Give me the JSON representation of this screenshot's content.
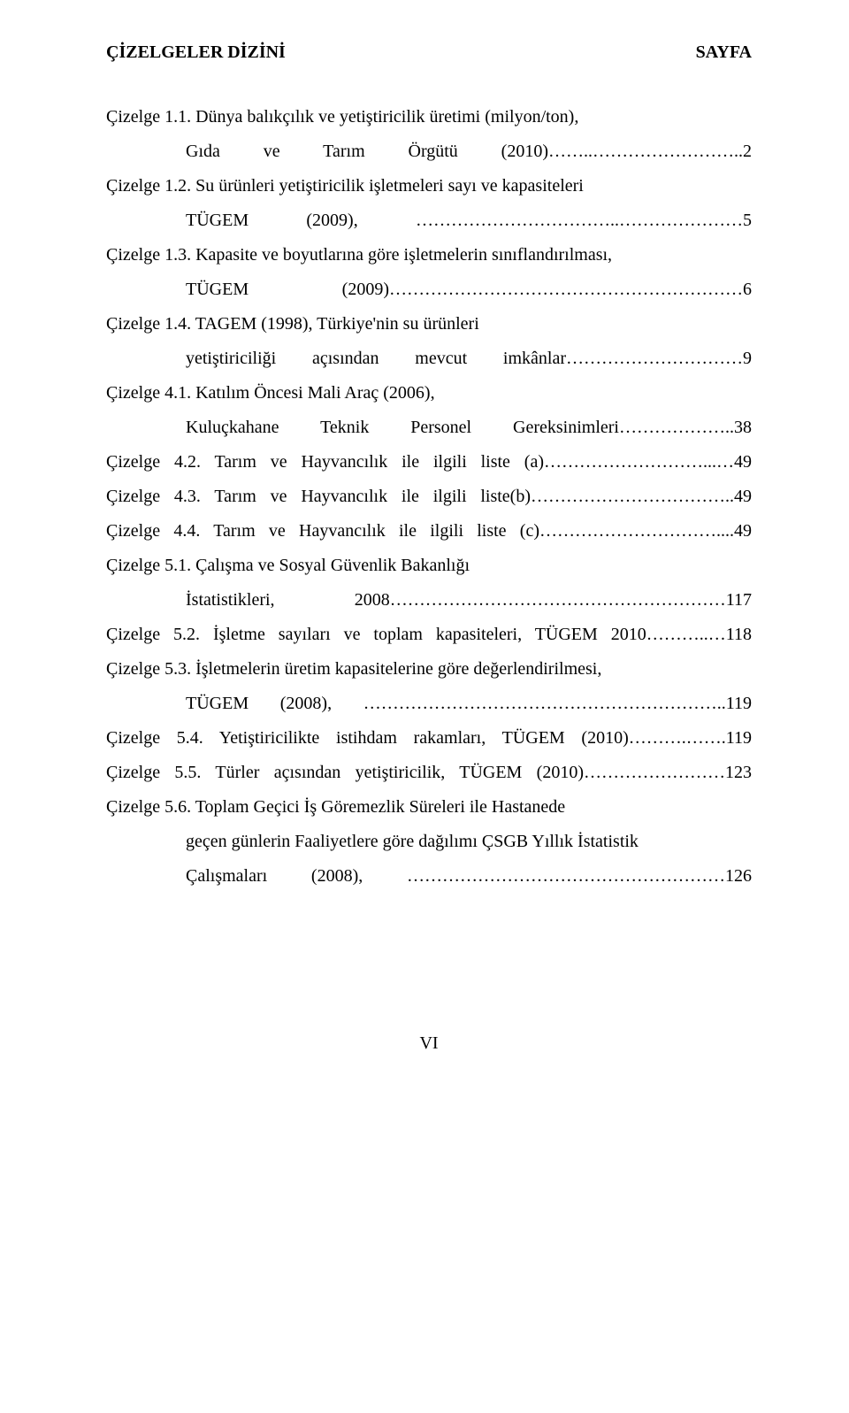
{
  "header": {
    "left": "ÇİZELGELER DİZİNİ",
    "right": "SAYFA"
  },
  "entries": [
    {
      "l1": "Çizelge 1.1. Dünya balıkçılık ve yetiştiricilik üretimi (milyon/ton),",
      "l2": "Gıda ve Tarım Örgütü (2010)……..……………………..2"
    },
    {
      "l1": "Çizelge 1.2. Su ürünleri yetiştiricilik işletmeleri sayı ve kapasiteleri",
      "l2": "TÜGEM (2009), ……………………………..…………………5"
    },
    {
      "l1": "Çizelge 1.3. Kapasite ve boyutlarına göre işletmelerin sınıflandırılması,",
      "l2": "TÜGEM (2009)……………………………………………………6"
    },
    {
      "l1": "Çizelge 1.4. TAGEM (1998), Türkiye'nin su ürünleri",
      "l2": "yetiştiriciliği açısından mevcut imkânlar…………………………9"
    },
    {
      "l1": "Çizelge 4.1. Katılım Öncesi Mali Araç (2006),",
      "l2": "Kuluçkahane Teknik Personel Gereksinimleri………………..38"
    },
    {
      "single": "Çizelge 4.2. Tarım ve Hayvancılık ile ilgili liste (a)………………………...…49"
    },
    {
      "single": "Çizelge 4.3. Tarım ve Hayvancılık ile ilgili liste(b)……………………………..49"
    },
    {
      "single": "Çizelge 4.4. Tarım ve Hayvancılık ile ilgili liste (c)…………………………....49"
    },
    {
      "l1": "Çizelge 5.1. Çalışma ve Sosyal Güvenlik Bakanlığı",
      "l2": "İstatistikleri, 2008…………………………………………………117"
    },
    {
      "single": "Çizelge 5.2. İşletme sayıları ve  toplam kapasiteleri, TÜGEM 2010………..…118"
    },
    {
      "l1": "Çizelge 5.3. İşletmelerin üretim kapasitelerine göre değerlendirilmesi,",
      "l2": "TÜGEM (2008), ……………………………………………………..119"
    },
    {
      "single": "Çizelge 5.4. Yetiştiricilikte istihdam rakamları, TÜGEM (2010)……….…….119"
    },
    {
      "single": "Çizelge 5.5. Türler açısından yetiştiricilik, TÜGEM (2010)……………………123"
    },
    {
      "l1": "Çizelge 5.6.  Toplam Geçici İş Göremezlik Süreleri ile Hastanede",
      "l2a": "geçen günlerin Faaliyetlere göre dağılımı ÇSGB Yıllık İstatistik",
      "l2": "Çalışmaları (2008), ………………………………………………126"
    }
  ],
  "page_number": "VI"
}
